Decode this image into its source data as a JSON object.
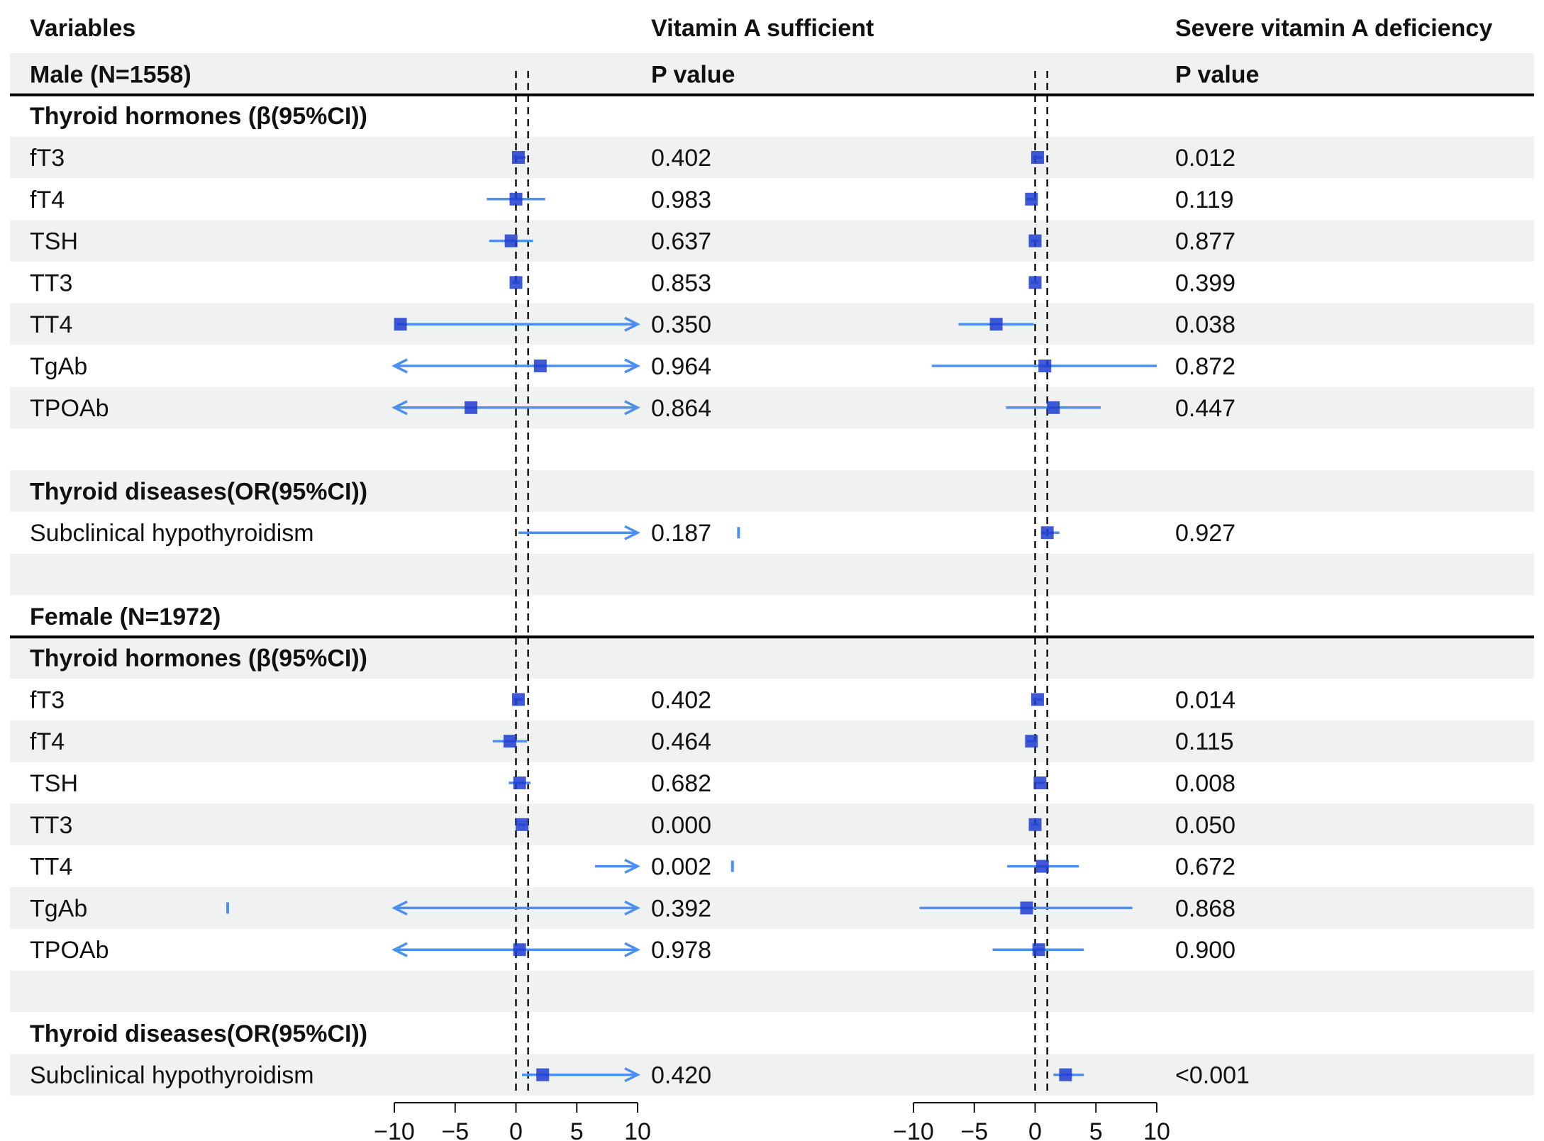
{
  "header": {
    "variables": "Variables",
    "vas_title": "Vitamin A sufficient",
    "svad_title": "Severe vitamin A deficiency",
    "pvalue_label_left": "P value",
    "pvalue_label_right": "P value"
  },
  "colors": {
    "stripe": "#f0f2f1",
    "ci": "#4d8ff0",
    "marker": "#1e3ccf",
    "rule": "#000000"
  },
  "chart_data": {
    "type": "forest",
    "panels": [
      {
        "name": "Vitamin A sufficient",
        "xlim": [
          -10,
          10
        ],
        "ticks": [
          -10,
          -5,
          0,
          5,
          10
        ],
        "tick_labels": [
          "−10",
          "−5",
          "0",
          "5",
          "10"
        ],
        "ref_lines": [
          0,
          1
        ]
      },
      {
        "name": "Severe vitamin A deficiency",
        "xlim": [
          -10,
          10
        ],
        "ticks": [
          -10,
          -5,
          0,
          5,
          10
        ],
        "tick_labels": [
          "−10",
          "−5",
          "0",
          "5",
          "10"
        ],
        "ref_lines": [
          0,
          1
        ]
      }
    ],
    "rows": [
      {
        "label": "Male (N=1558)",
        "bold": true,
        "kind": "group",
        "p1": "P value",
        "p2": "P value",
        "p_bold": true
      },
      {
        "label": "Thyroid hormones (β(95%CI))",
        "bold": true,
        "kind": "section"
      },
      {
        "label": "fT3",
        "p1": "0.402",
        "p2": "0.012",
        "e1": {
          "est": 0.2,
          "lo": -0.2,
          "hi": 0.8
        },
        "e2": {
          "est": 0.2,
          "lo": -0.2,
          "hi": 0.6
        }
      },
      {
        "label": "fT4",
        "p1": "0.983",
        "p2": "0.119",
        "e1": {
          "est": 0.0,
          "lo": -2.4,
          "hi": 2.4
        },
        "e2": {
          "est": -0.3,
          "lo": -0.8,
          "hi": 0.1
        }
      },
      {
        "label": "TSH",
        "p1": "0.637",
        "p2": "0.877",
        "e1": {
          "est": -0.4,
          "lo": -2.2,
          "hi": 1.4
        },
        "e2": {
          "est": 0.0,
          "lo": -0.3,
          "hi": 0.3
        }
      },
      {
        "label": "TT3",
        "p1": "0.853",
        "p2": "0.399",
        "e1": {
          "est": 0.0,
          "lo": -0.3,
          "hi": 0.3
        },
        "e2": {
          "est": 0.0,
          "lo": -0.3,
          "hi": 0.3
        }
      },
      {
        "label": "TT4",
        "p1": "0.350",
        "p2": "0.038",
        "e1": {
          "est": -9.5,
          "lo": -9.8,
          "hi": 10,
          "arrow_hi": true
        },
        "e2": {
          "est": -3.2,
          "lo": -6.3,
          "hi": -0.1
        }
      },
      {
        "label": "TgAb",
        "p1": "0.964",
        "p2": "0.872",
        "e1": {
          "est": 2.0,
          "lo": -10,
          "hi": 10,
          "arrow_lo": true,
          "arrow_hi": true
        },
        "e2": {
          "est": 0.8,
          "lo": -8.5,
          "hi": 10
        }
      },
      {
        "label": "TPOAb",
        "p1": "0.864",
        "p2": "0.447",
        "e1": {
          "est": -3.7,
          "lo": -10,
          "hi": 10,
          "arrow_lo": true,
          "arrow_hi": true
        },
        "e2": {
          "est": 1.5,
          "lo": -2.4,
          "hi": 5.4
        }
      },
      {
        "label": "",
        "kind": "blank"
      },
      {
        "label": "Thyroid diseases(OR(95%CI))",
        "bold": true,
        "kind": "section"
      },
      {
        "label": "Subclinical hypothyroidism",
        "p1": "0.187",
        "p2": "0.927",
        "e1": {
          "lo": 0.2,
          "hi": 10,
          "arrow_hi": true,
          "stray": 18.3
        },
        "e2": {
          "est": 1.0,
          "lo": 0.5,
          "hi": 2.0
        }
      },
      {
        "label": "",
        "kind": "blank"
      },
      {
        "label": "Female (N=1972)",
        "bold": true,
        "kind": "group"
      },
      {
        "label": "Thyroid hormones (β(95%CI))",
        "bold": true,
        "kind": "section"
      },
      {
        "label": "fT3",
        "p1": "0.402",
        "p2": "0.014",
        "e1": {
          "est": 0.2,
          "lo": -0.2,
          "hi": 0.6
        },
        "e2": {
          "est": 0.2,
          "lo": -0.2,
          "hi": 0.6
        }
      },
      {
        "label": "fT4",
        "p1": "0.464",
        "p2": "0.115",
        "e1": {
          "est": -0.5,
          "lo": -1.9,
          "hi": 0.9
        },
        "e2": {
          "est": -0.3,
          "lo": -0.7,
          "hi": 0.1
        }
      },
      {
        "label": "TSH",
        "p1": "0.682",
        "p2": "0.008",
        "e1": {
          "est": 0.3,
          "lo": -0.6,
          "hi": 1.2
        },
        "e2": {
          "est": 0.4,
          "lo": 0.1,
          "hi": 0.8
        }
      },
      {
        "label": "TT3",
        "p1": "0.000",
        "p2": "0.050",
        "e1": {
          "est": 0.5,
          "lo": 0.2,
          "hi": 0.8
        },
        "e2": {
          "est": 0.0,
          "lo": -0.3,
          "hi": 0.3
        }
      },
      {
        "label": "TT4",
        "p1": "0.002",
        "p2": "0.672",
        "e1": {
          "lo": 6.5,
          "hi": 10,
          "arrow_hi": true,
          "stray": 17.8
        },
        "e2": {
          "est": 0.6,
          "lo": -2.3,
          "hi": 3.6
        }
      },
      {
        "label": "TgAb",
        "p1": "0.392",
        "p2": "0.868",
        "e1": {
          "lo": -10,
          "hi": 10,
          "arrow_lo": true,
          "arrow_hi": true,
          "stray": -23.7
        },
        "e2": {
          "est": -0.7,
          "lo": -9.5,
          "hi": 8.0
        }
      },
      {
        "label": "TPOAb",
        "p1": "0.978",
        "p2": "0.900",
        "e1": {
          "est": 0.3,
          "lo": -10,
          "hi": 10,
          "arrow_lo": true,
          "arrow_hi": true
        },
        "e2": {
          "est": 0.3,
          "lo": -3.5,
          "hi": 4.0
        }
      },
      {
        "label": "",
        "kind": "blank"
      },
      {
        "label": "Thyroid diseases(OR(95%CI))",
        "bold": true,
        "kind": "section"
      },
      {
        "label": "Subclinical hypothyroidism",
        "p1": "0.420",
        "p2": "<0.001",
        "e1": {
          "est": 2.2,
          "lo": 0.5,
          "hi": 10,
          "arrow_hi": true
        },
        "e2": {
          "est": 2.5,
          "lo": 1.5,
          "hi": 4.0
        }
      }
    ]
  }
}
